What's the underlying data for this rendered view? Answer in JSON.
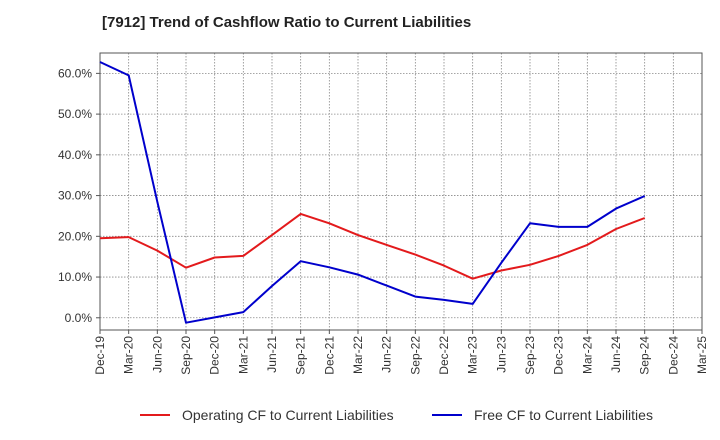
{
  "chart_data": {
    "type": "line",
    "title": "[7912]  Trend of Cashflow Ratio to Current Liabilities",
    "xlabel": "",
    "ylabel": "",
    "x": [
      "Dec-19",
      "Mar-20",
      "Jun-20",
      "Sep-20",
      "Dec-20",
      "Mar-21",
      "Jun-21",
      "Sep-21",
      "Dec-21",
      "Mar-22",
      "Jun-22",
      "Sep-22",
      "Dec-22",
      "Mar-23",
      "Jun-23",
      "Sep-23",
      "Dec-23",
      "Mar-24",
      "Jun-24",
      "Sep-24",
      "Dec-24",
      "Mar-25"
    ],
    "ylim": [
      -3,
      65
    ],
    "yticks": [
      0,
      10,
      20,
      30,
      40,
      50,
      60
    ],
    "ytick_labels": [
      "0.0%",
      "10.0%",
      "20.0%",
      "30.0%",
      "40.0%",
      "50.0%",
      "60.0%"
    ],
    "grid": true,
    "legend_position": "bottom",
    "series": [
      {
        "name": "Operating CF to Current Liabilities",
        "color": "#e31a1c",
        "values": [
          19.5,
          19.8,
          16.5,
          12.3,
          14.8,
          15.2,
          20.3,
          25.5,
          23.2,
          20.3,
          17.9,
          15.5,
          12.8,
          9.6,
          11.6,
          13.0,
          15.2,
          17.9,
          21.8,
          24.5,
          null,
          null
        ]
      },
      {
        "name": "Free CF to Current Liabilities",
        "color": "#0000cc",
        "values": [
          62.8,
          59.5,
          28.5,
          -1.2,
          0.1,
          1.4,
          7.8,
          13.9,
          12.4,
          10.6,
          7.9,
          5.2,
          4.4,
          3.4,
          13.5,
          23.2,
          22.3,
          22.3,
          26.8,
          29.9,
          null,
          null
        ]
      }
    ]
  }
}
